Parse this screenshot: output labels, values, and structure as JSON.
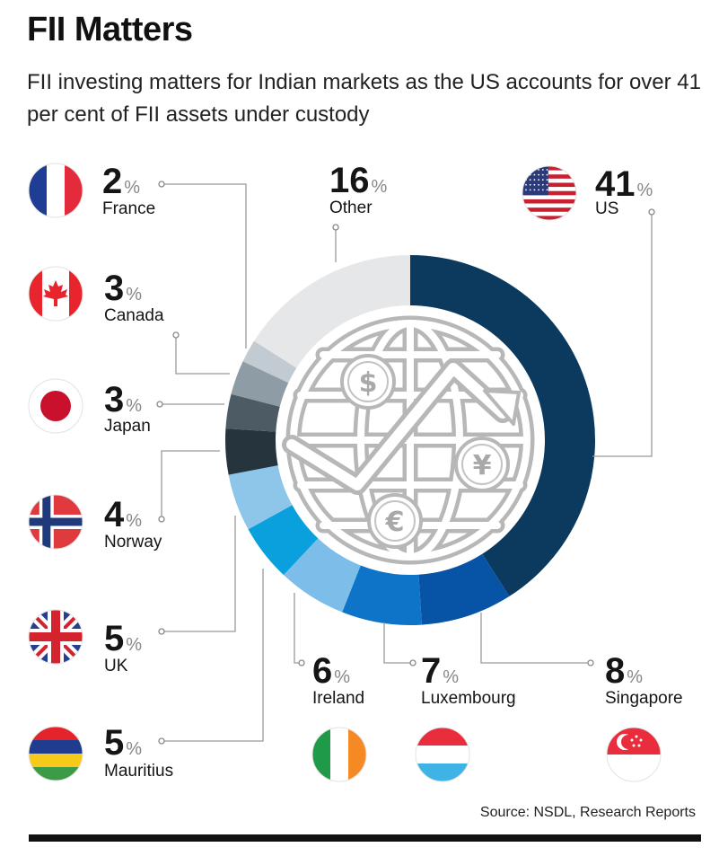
{
  "title": "FII Matters",
  "subtitle": "FII investing matters for Indian markets as the US accounts for over 41 per cent of FII assets under custody",
  "source": "Source: NSDL, Research Reports",
  "chart_data": {
    "type": "pie",
    "variant": "donut",
    "unit": "%",
    "slices": [
      {
        "label": "US",
        "value": 41,
        "color": "#0b3a5e",
        "flag": "us-flag-icon"
      },
      {
        "label": "Singapore",
        "value": 8,
        "color": "#0753a6",
        "flag": "singapore-flag-icon"
      },
      {
        "label": "Luxembourg",
        "value": 7,
        "color": "#0e74c7",
        "flag": "luxembourg-flag-icon"
      },
      {
        "label": "Ireland",
        "value": 6,
        "color": "#7cbde9",
        "flag": "ireland-flag-icon"
      },
      {
        "label": "Mauritius",
        "value": 5,
        "color": "#0aa0dd",
        "flag": "mauritius-flag-icon"
      },
      {
        "label": "UK",
        "value": 5,
        "color": "#8ec6ea",
        "flag": "uk-flag-icon"
      },
      {
        "label": "Norway",
        "value": 4,
        "color": "#25343d",
        "flag": "norway-flag-icon"
      },
      {
        "label": "Japan",
        "value": 3,
        "color": "#4d5b65",
        "flag": "japan-flag-icon"
      },
      {
        "label": "Canada",
        "value": 3,
        "color": "#8e9ca6",
        "flag": "canada-flag-icon"
      },
      {
        "label": "France",
        "value": 2,
        "color": "#c2cbd1",
        "flag": "france-flag-icon"
      },
      {
        "label": "Other",
        "value": 16,
        "color": "#e6e7e9",
        "flag": ""
      }
    ],
    "center_icon": "globe-with-currency-icon"
  }
}
